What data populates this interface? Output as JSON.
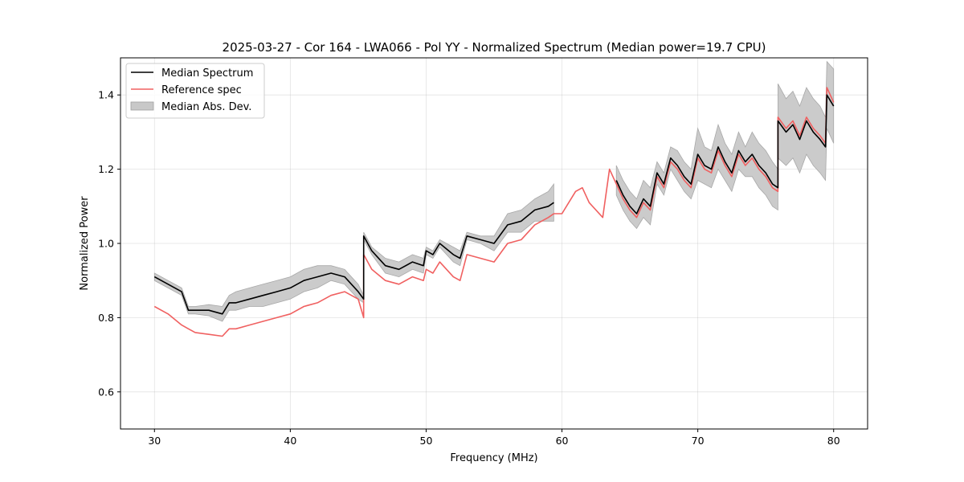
{
  "chart_data": {
    "type": "line",
    "title": "2025-03-27 - Cor 164 - LWA066 - Pol YY - Normalized Spectrum (Median power=19.7 CPU)",
    "xlabel": "Frequency (MHz)",
    "ylabel": "Normalized Power",
    "xlim": [
      27.5,
      82.5
    ],
    "ylim": [
      0.5,
      1.5
    ],
    "xticks": [
      30,
      40,
      50,
      60,
      70,
      80
    ],
    "xtick_labels": [
      "30",
      "40",
      "50",
      "60",
      "70",
      "80"
    ],
    "yticks": [
      0.6,
      0.8,
      1.0,
      1.2,
      1.4
    ],
    "ytick_labels": [
      "0.6",
      "0.8",
      "1.0",
      "1.2",
      "1.4"
    ],
    "grid": true,
    "legend_position": "top-left",
    "legend": [
      {
        "label": "Median Spectrum",
        "kind": "line",
        "color": "#000000"
      },
      {
        "label": "Reference spec",
        "kind": "line",
        "color": "#f06060"
      },
      {
        "label": "Median Abs. Dev.",
        "kind": "patch",
        "color": "#c8c8c8"
      }
    ],
    "series": [
      {
        "name": "Median Spectrum",
        "color": "#000000",
        "segments": [
          {
            "x": [
              30,
              31,
              32,
              32.5,
              33,
              34,
              35,
              35.5,
              36,
              37,
              38,
              39,
              40,
              41,
              42,
              43,
              44,
              45,
              45.4,
              45.4,
              46,
              47,
              48,
              49,
              49.8,
              50,
              50.5,
              51,
              52,
              52.5,
              53,
              54,
              55,
              56,
              57,
              58,
              59,
              59.4
            ],
            "y": [
              0.91,
              0.89,
              0.87,
              0.82,
              0.82,
              0.82,
              0.81,
              0.84,
              0.84,
              0.85,
              0.86,
              0.87,
              0.88,
              0.9,
              0.91,
              0.92,
              0.91,
              0.87,
              0.85,
              1.02,
              0.98,
              0.94,
              0.93,
              0.95,
              0.94,
              0.98,
              0.97,
              1.0,
              0.97,
              0.96,
              1.02,
              1.01,
              1.0,
              1.05,
              1.06,
              1.09,
              1.1,
              1.11
            ]
          },
          {
            "x": [
              64,
              64.5,
              65,
              65.5,
              66,
              66.5,
              67,
              67.5,
              68,
              68.5,
              69,
              69.5,
              70,
              70.5,
              71,
              71.5,
              72,
              72.5,
              73,
              73.5,
              74,
              74.5,
              75,
              75.5,
              75.9,
              75.9,
              76.5,
              77,
              77.5,
              78,
              78.5,
              79,
              79.4,
              79.5,
              80
            ],
            "y": [
              1.17,
              1.13,
              1.1,
              1.08,
              1.12,
              1.1,
              1.19,
              1.16,
              1.23,
              1.21,
              1.18,
              1.16,
              1.24,
              1.21,
              1.2,
              1.26,
              1.22,
              1.19,
              1.25,
              1.22,
              1.24,
              1.21,
              1.19,
              1.16,
              1.15,
              1.33,
              1.3,
              1.32,
              1.28,
              1.33,
              1.3,
              1.28,
              1.26,
              1.4,
              1.37
            ]
          }
        ]
      },
      {
        "name": "Reference spec",
        "color": "#f06060",
        "segments": [
          {
            "x": [
              30,
              31,
              32,
              32.5,
              33,
              34,
              35,
              35.5,
              36,
              37,
              38,
              39,
              40,
              41,
              42,
              43,
              44,
              45,
              45.4,
              45.4,
              46,
              47,
              48,
              49,
              49.8,
              50,
              50.5,
              51,
              52,
              52.5,
              53,
              54,
              55,
              56,
              57,
              58,
              59,
              59.4,
              60,
              61,
              61.5,
              62,
              63,
              63.5,
              64,
              64.5,
              65,
              65.5,
              66,
              66.5,
              67,
              67.5,
              68,
              68.5,
              69,
              69.5,
              70,
              70.5,
              71,
              71.5,
              72,
              72.5,
              73,
              73.5,
              74,
              74.5,
              75,
              75.5,
              75.9,
              75.9,
              76.5,
              77,
              77.5,
              78,
              78.5,
              79,
              79.4,
              79.5,
              80
            ],
            "y": [
              0.83,
              0.81,
              0.78,
              0.77,
              0.76,
              0.755,
              0.75,
              0.77,
              0.77,
              0.78,
              0.79,
              0.8,
              0.81,
              0.83,
              0.84,
              0.86,
              0.87,
              0.85,
              0.8,
              0.97,
              0.93,
              0.9,
              0.89,
              0.91,
              0.9,
              0.93,
              0.92,
              0.95,
              0.91,
              0.9,
              0.97,
              0.96,
              0.95,
              1.0,
              1.01,
              1.05,
              1.07,
              1.08,
              1.08,
              1.14,
              1.15,
              1.11,
              1.07,
              1.2,
              1.16,
              1.12,
              1.09,
              1.07,
              1.11,
              1.09,
              1.18,
              1.15,
              1.22,
              1.2,
              1.17,
              1.15,
              1.23,
              1.2,
              1.19,
              1.25,
              1.21,
              1.18,
              1.24,
              1.21,
              1.23,
              1.2,
              1.18,
              1.15,
              1.14,
              1.34,
              1.31,
              1.33,
              1.29,
              1.34,
              1.31,
              1.29,
              1.27,
              1.42,
              1.38
            ]
          }
        ]
      }
    ],
    "band": {
      "name": "Median Abs. Dev.",
      "color": "#c8c8c8",
      "segments": [
        {
          "x": [
            30,
            31,
            32,
            32.5,
            33,
            34,
            35,
            35.5,
            36,
            37,
            38,
            39,
            40,
            41,
            42,
            43,
            44,
            45,
            45.4,
            45.4,
            46,
            47,
            48,
            49,
            49.8,
            50,
            50.5,
            51,
            52,
            52.5,
            53,
            54,
            55,
            56,
            57,
            58,
            59,
            59.4
          ],
          "upper": [
            0.92,
            0.9,
            0.88,
            0.83,
            0.83,
            0.835,
            0.83,
            0.86,
            0.87,
            0.88,
            0.89,
            0.9,
            0.91,
            0.93,
            0.94,
            0.94,
            0.93,
            0.89,
            0.86,
            1.03,
            0.99,
            0.96,
            0.95,
            0.97,
            0.96,
            0.99,
            0.98,
            1.01,
            0.99,
            0.98,
            1.03,
            1.02,
            1.02,
            1.08,
            1.09,
            1.12,
            1.14,
            1.16
          ],
          "lower": [
            0.9,
            0.88,
            0.86,
            0.81,
            0.81,
            0.805,
            0.79,
            0.82,
            0.82,
            0.83,
            0.83,
            0.84,
            0.85,
            0.87,
            0.88,
            0.9,
            0.89,
            0.85,
            0.84,
            1.01,
            0.97,
            0.92,
            0.91,
            0.93,
            0.92,
            0.97,
            0.96,
            0.99,
            0.95,
            0.94,
            1.01,
            1.0,
            0.98,
            1.03,
            1.03,
            1.06,
            1.06,
            1.06
          ]
        },
        {
          "x": [
            64,
            64.5,
            65,
            65.5,
            66,
            66.5,
            67,
            67.5,
            68,
            68.5,
            69,
            69.5,
            70,
            70.5,
            71,
            71.5,
            72,
            72.5,
            73,
            73.5,
            74,
            74.5,
            75,
            75.5,
            75.9,
            75.9,
            76.5,
            77,
            77.5,
            78,
            78.5,
            79,
            79.4,
            79.5,
            80
          ],
          "upper": [
            1.21,
            1.17,
            1.14,
            1.12,
            1.17,
            1.15,
            1.22,
            1.19,
            1.26,
            1.25,
            1.22,
            1.2,
            1.31,
            1.26,
            1.25,
            1.32,
            1.27,
            1.24,
            1.3,
            1.26,
            1.3,
            1.27,
            1.25,
            1.22,
            1.2,
            1.43,
            1.39,
            1.41,
            1.37,
            1.42,
            1.39,
            1.37,
            1.34,
            1.49,
            1.47
          ],
          "lower": [
            1.13,
            1.09,
            1.06,
            1.04,
            1.07,
            1.05,
            1.16,
            1.13,
            1.2,
            1.17,
            1.14,
            1.12,
            1.17,
            1.16,
            1.15,
            1.2,
            1.17,
            1.14,
            1.2,
            1.18,
            1.18,
            1.15,
            1.13,
            1.1,
            1.09,
            1.23,
            1.21,
            1.23,
            1.19,
            1.24,
            1.21,
            1.19,
            1.17,
            1.31,
            1.27
          ]
        }
      ]
    }
  }
}
